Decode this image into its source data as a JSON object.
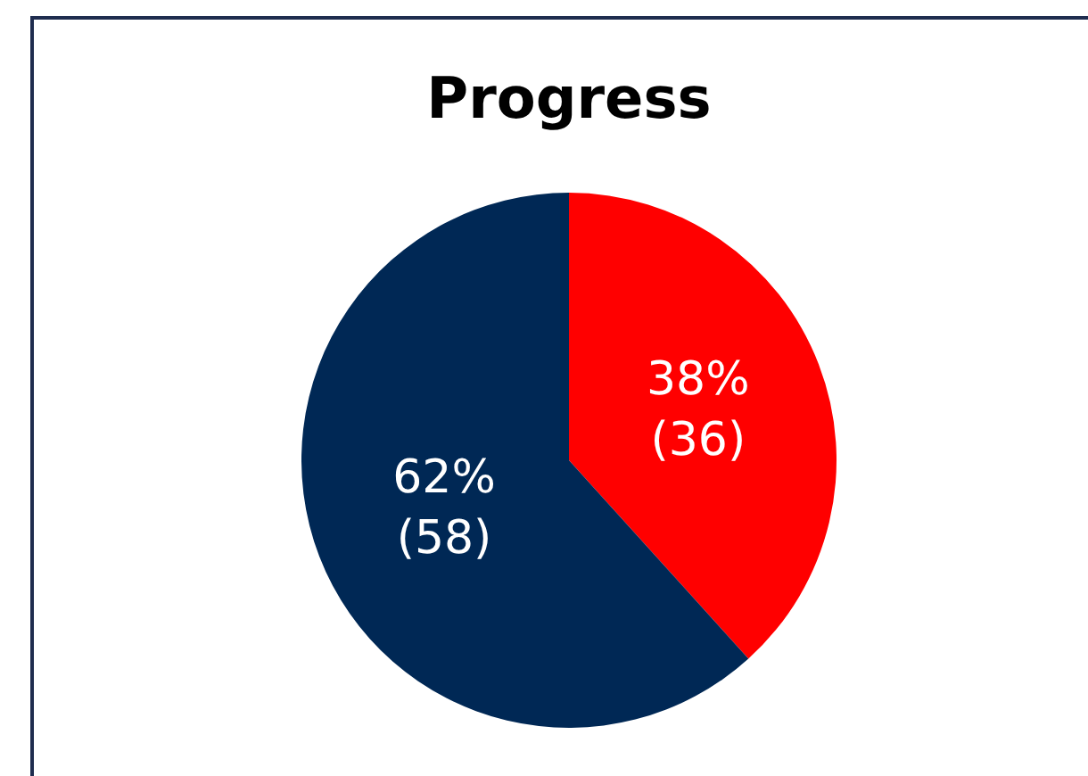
{
  "chart_data": {
    "type": "pie",
    "title": "Progress",
    "categories": [
      null,
      null
    ],
    "values": [
      36,
      58
    ],
    "colors": [
      "#ff0000",
      "#002855"
    ],
    "value_labels": [
      "38%\n(36)",
      "62%\n(58)"
    ],
    "legend": false
  }
}
